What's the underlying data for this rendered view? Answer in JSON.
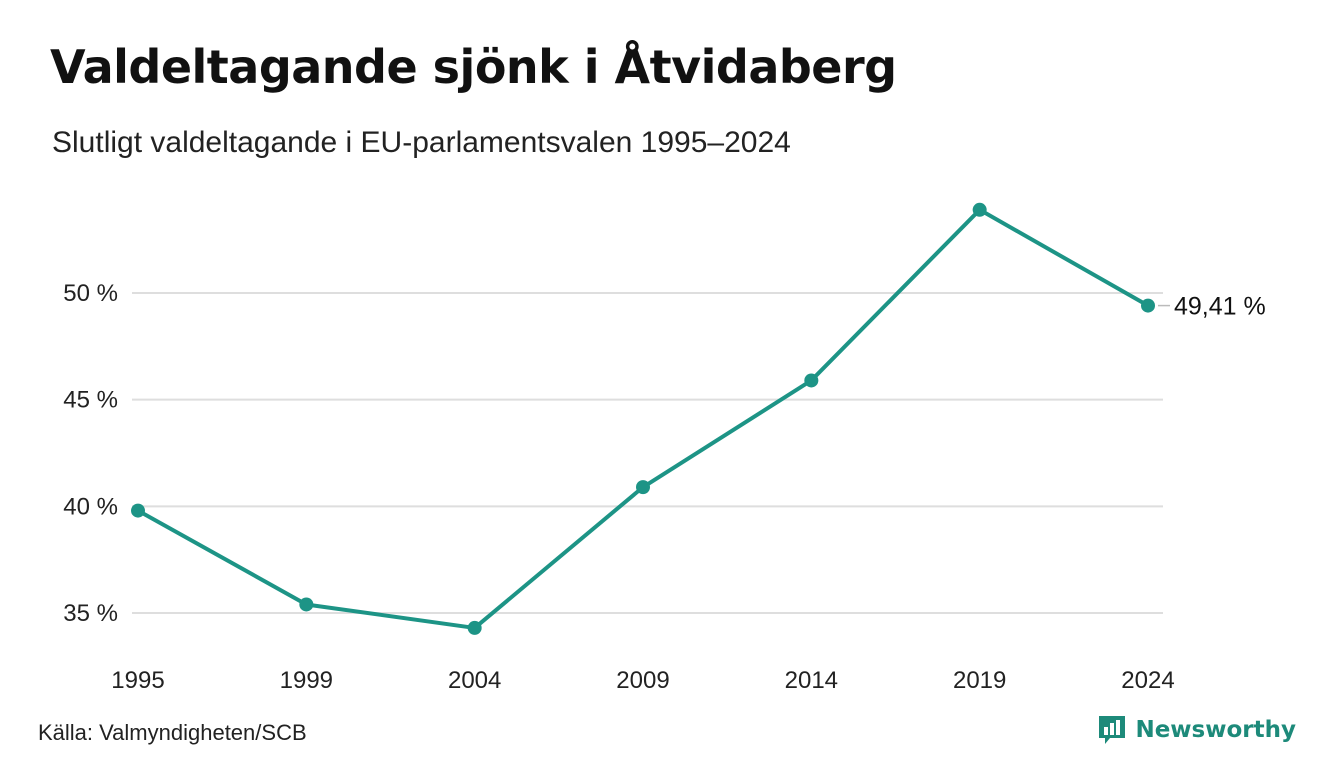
{
  "title": "Valdeltagande sjönk i Åtvidaberg",
  "subtitle": "Slutligt valdeltagande i EU-parlamentsvalen 1995–2024",
  "source": "Källa: Valmyndigheten/SCB",
  "brand": {
    "name": "Newsworthy",
    "logo_icon": "bar-chart-speech-bubble-icon",
    "color": "#1d8a7a"
  },
  "chart_data": {
    "type": "line",
    "x": [
      "1995",
      "1999",
      "2004",
      "2009",
      "2014",
      "2019",
      "2024"
    ],
    "series": [
      {
        "values": [
          39.8,
          35.4,
          34.3,
          40.9,
          45.9,
          53.9,
          49.41
        ],
        "color": "#1d9486"
      }
    ],
    "ylim": [
      33.5,
      55
    ],
    "yticks": [
      35,
      40,
      45,
      50
    ],
    "ytick_labels": [
      "35 %",
      "40 %",
      "45 %",
      "50 %"
    ],
    "grid": true,
    "end_label": "49,41 %"
  }
}
